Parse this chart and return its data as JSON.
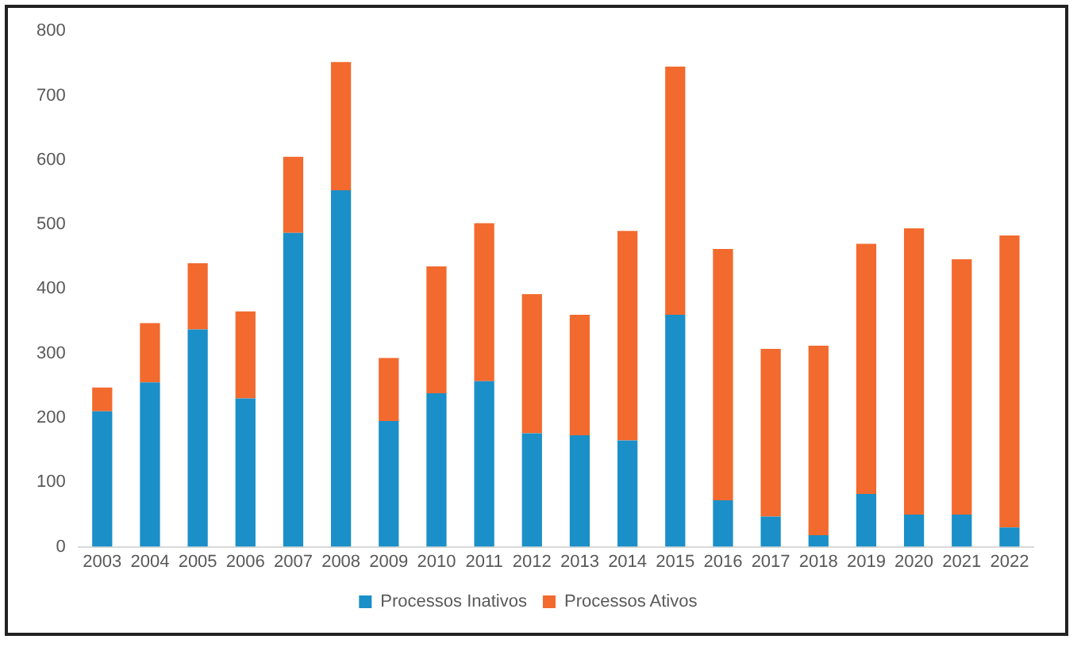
{
  "chart_data": {
    "type": "bar",
    "stacked": true,
    "categories": [
      "2003",
      "2004",
      "2005",
      "2006",
      "2007",
      "2008",
      "2009",
      "2010",
      "2011",
      "2012",
      "2013",
      "2014",
      "2015",
      "2016",
      "2017",
      "2018",
      "2019",
      "2020",
      "2021",
      "2022"
    ],
    "series": [
      {
        "name": "Processos Inativos",
        "color": "#1a8fc8",
        "values": [
          210,
          255,
          337,
          230,
          487,
          553,
          195,
          238,
          257,
          176,
          173,
          165,
          360,
          72,
          47,
          18,
          82,
          50,
          50,
          30
        ]
      },
      {
        "name": "Processos Ativos",
        "color": "#f26a2e",
        "values": [
          37,
          92,
          103,
          135,
          118,
          199,
          98,
          197,
          245,
          216,
          187,
          325,
          385,
          390,
          260,
          294,
          388,
          444,
          396,
          453
        ]
      }
    ],
    "ylim": [
      0,
      800
    ],
    "yticks": [
      0,
      100,
      200,
      300,
      400,
      500,
      600,
      700,
      800
    ],
    "grid": false,
    "legend": "bottom"
  }
}
